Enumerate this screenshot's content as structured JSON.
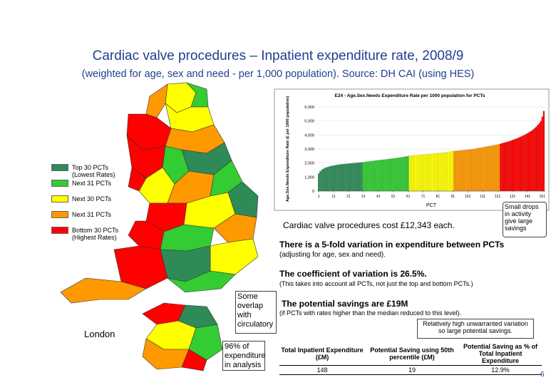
{
  "header": {
    "title": "Cardiac valve procedures – Inpatient expenditure rate, 2008/9",
    "subtitle": "(weighted for age, sex and need - per 1,000 population). Source: DH CAI (using HES)"
  },
  "legend": [
    {
      "line1": "Top 30 PCTs",
      "line2": "(Lowest Rates)",
      "color": "#2e8b57"
    },
    {
      "line1": "Next 31 PCTs",
      "color": "#33cc33"
    },
    {
      "line1": "Next 30 PCTs",
      "color": "#ffff00"
    },
    {
      "line1": "Next 31 PCTs",
      "color": "#ff9900"
    },
    {
      "line1": "Bottom 30 PCTs",
      "line2": "(Highest Rates)",
      "color": "#ff0000"
    }
  ],
  "chart_data": {
    "type": "bar",
    "title": "E24 - Age.Sex.Needs Expenditure Rate per 1000 population for PCTs",
    "x_label": "PCT",
    "y_label": "Age.Sex.Needs Expenditure Rate (£ per 1000 population)",
    "xlim": [
      0,
      153
    ],
    "xticks": [
      1,
      11,
      21,
      31,
      41,
      51,
      61,
      71,
      81,
      91,
      101,
      111,
      121,
      131,
      141,
      151
    ],
    "ylim": [
      0,
      6000
    ],
    "yticks": [
      0,
      {
        "value": 1000,
        "label": "1,000"
      },
      {
        "value": 2000,
        "label": "2,000"
      },
      {
        "value": 3000,
        "label": "3,000"
      },
      {
        "value": 4000,
        "label": "4,000"
      },
      {
        "value": 5000,
        "label": "5,000"
      },
      {
        "value": 6000,
        "label": "6,000"
      }
    ],
    "series": [
      {
        "color": "#2e8b57",
        "x": [
          1,
          2,
          3,
          4,
          5,
          6,
          7,
          8,
          9,
          10,
          11,
          12,
          13,
          14,
          15,
          16,
          17,
          18,
          19,
          20,
          21,
          22,
          23,
          24,
          25,
          26,
          27,
          28,
          29,
          30
        ],
        "values": [
          1250,
          1400,
          1500,
          1580,
          1640,
          1680,
          1720,
          1750,
          1780,
          1800,
          1820,
          1840,
          1860,
          1880,
          1900,
          1910,
          1920,
          1930,
          1940,
          1950,
          1960,
          1970,
          1980,
          1990,
          2000,
          2010,
          2020,
          2030,
          2040,
          2050
        ]
      },
      {
        "color": "#33cc33",
        "x": [
          31,
          32,
          33,
          34,
          35,
          36,
          37,
          38,
          39,
          40,
          41,
          42,
          43,
          44,
          45,
          46,
          47,
          48,
          49,
          50,
          51,
          52,
          53,
          54,
          55,
          56,
          57,
          58,
          59,
          60,
          61
        ],
        "values": [
          2060,
          2080,
          2100,
          2110,
          2120,
          2140,
          2150,
          2160,
          2180,
          2190,
          2200,
          2210,
          2220,
          2240,
          2250,
          2260,
          2280,
          2290,
          2300,
          2320,
          2330,
          2340,
          2360,
          2370,
          2380,
          2400,
          2420,
          2440,
          2460,
          2480,
          2500
        ]
      },
      {
        "color": "#ffff00",
        "x": [
          62,
          63,
          64,
          65,
          66,
          67,
          68,
          69,
          70,
          71,
          72,
          73,
          74,
          75,
          76,
          77,
          78,
          79,
          80,
          81,
          82,
          83,
          84,
          85,
          86,
          87,
          88,
          89,
          90,
          91
        ],
        "values": [
          2510,
          2520,
          2530,
          2540,
          2550,
          2560,
          2570,
          2580,
          2590,
          2600,
          2610,
          2620,
          2630,
          2640,
          2650,
          2660,
          2670,
          2680,
          2690,
          2700,
          2710,
          2720,
          2730,
          2740,
          2750,
          2770,
          2790,
          2810,
          2830,
          2850
        ]
      },
      {
        "color": "#ff9900",
        "x": [
          92,
          93,
          94,
          95,
          96,
          97,
          98,
          99,
          100,
          101,
          102,
          103,
          104,
          105,
          106,
          107,
          108,
          109,
          110,
          111,
          112,
          113,
          114,
          115,
          116,
          117,
          118,
          119,
          120,
          121,
          122
        ],
        "values": [
          2860,
          2870,
          2880,
          2890,
          2900,
          2910,
          2920,
          2930,
          2940,
          2950,
          2960,
          2970,
          2980,
          3000,
          3020,
          3040,
          3060,
          3080,
          3100,
          3120,
          3140,
          3160,
          3180,
          3200,
          3220,
          3240,
          3260,
          3280,
          3300,
          3320,
          3350
        ]
      },
      {
        "color": "#ff0000",
        "x": [
          123,
          124,
          125,
          126,
          127,
          128,
          129,
          130,
          131,
          132,
          133,
          134,
          135,
          136,
          137,
          138,
          139,
          140,
          141,
          142,
          143,
          144,
          145,
          146,
          147,
          148,
          149,
          150,
          151,
          152
        ],
        "values": [
          3380,
          3410,
          3440,
          3470,
          3500,
          3530,
          3560,
          3600,
          3640,
          3680,
          3720,
          3760,
          3800,
          3850,
          3900,
          3950,
          4000,
          4060,
          4120,
          4180,
          4250,
          4320,
          4400,
          4500,
          4600,
          4720,
          4850,
          5000,
          5300,
          5700
        ]
      }
    ]
  },
  "notes": {
    "cost": "Cardiac valve procedures cost £12,343 each.",
    "small_drops": "Small drops in activity give large savings",
    "variation": "There is a 5-fold variation in expenditure between PCTs",
    "variation_note": "(adjusting for age, sex and need).",
    "cov": "The coefficient of variation is 26.5%.",
    "cov_note": "(This takes into account all PCTs, not just the top and bottom PCTs.)",
    "savings": "The potential savings are £19M",
    "savings_note": "(if PCTs with rates higher than the median reduced to this level).",
    "high_variation": "Relatively high unwarranted variation so large potential savings.",
    "overlap": "Some overlap with circulatory",
    "london": "London",
    "coverage": "96% of expenditure in analysis"
  },
  "table": {
    "headers": [
      "Total Inpatient Expenditure (£M)",
      "Potential Saving using 50th percentile (£M)",
      "Potential Saving as % of Total Inpatient Expenditure"
    ],
    "row": [
      "148",
      "19",
      "12.9%"
    ]
  },
  "page_number": "6"
}
